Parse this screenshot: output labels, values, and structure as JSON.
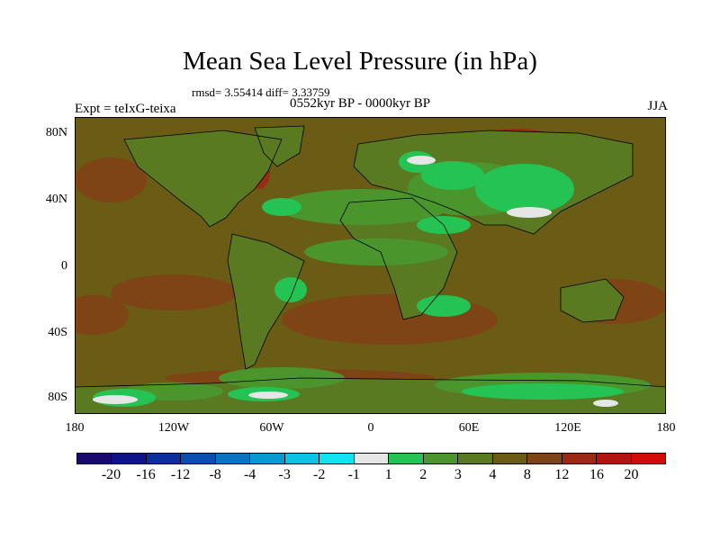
{
  "title": "Mean Sea Level Pressure (in hPa)",
  "stats": "rmsd= 3.55414 diff= 3.33759",
  "experiment": "Expt = teIxG-teixa",
  "period": "0552kyr BP - 0000kyr BP",
  "season": "JJA",
  "y_axis": [
    "80N",
    "40N",
    "0",
    "40S",
    "80S"
  ],
  "x_axis": [
    "180",
    "120W",
    "60W",
    "0",
    "60E",
    "120E",
    "180"
  ],
  "colorbar": {
    "labels": [
      "-20",
      "-16",
      "-12",
      "-8",
      "-4",
      "-3",
      "-2",
      "-1",
      "1",
      "2",
      "3",
      "4",
      "8",
      "12",
      "16",
      "20"
    ],
    "colors": [
      "#1a0a6e",
      "#101287",
      "#0c2f9e",
      "#0a4fae",
      "#0a74c0",
      "#069ad0",
      "#0cc3e6",
      "#10e4f2",
      "#e6e6e6",
      "#25c254",
      "#4a962c",
      "#5a7a22",
      "#6a5c14",
      "#7e4416",
      "#9a2a14",
      "#b41410",
      "#d20a0a"
    ]
  },
  "map_colors": {
    "ocean_base": "#6a5c14",
    "land_base": "#5a7a22",
    "high_pos": "#7e4416",
    "higher_pos": "#9a2a14",
    "mid_green": "#4a962c",
    "bright_green": "#25c254",
    "neutral": "#e6e6e6",
    "coast": "#000000"
  }
}
